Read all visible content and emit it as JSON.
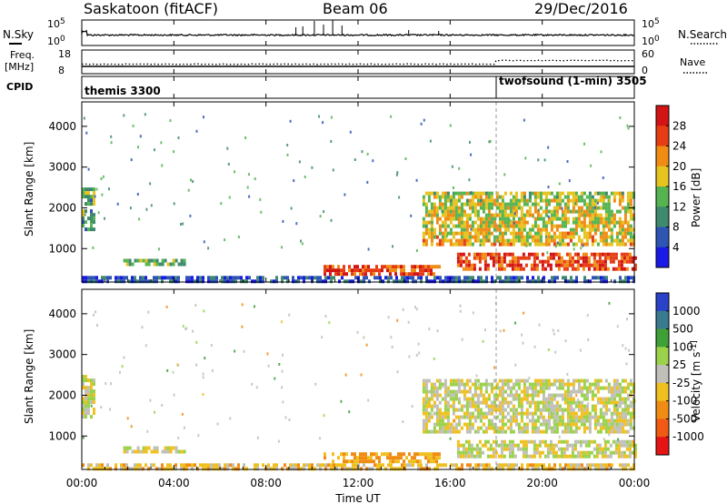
{
  "header": {
    "station": "Saskatoon (fitACF)",
    "beam": "Beam 06",
    "date": "29/Dec/2016"
  },
  "noise_panel": {
    "left_label": "N.Sky",
    "right_label": "N.Search",
    "left_ticks": [
      "10^5",
      "10^0"
    ],
    "right_ticks": [
      "10^5",
      "10^0"
    ]
  },
  "freq_panel": {
    "left_label_1": "Freq.",
    "left_label_2": "[MHz]",
    "right_label": "Nave",
    "left_ticks": [
      "18",
      "8"
    ],
    "right_ticks": [
      "60",
      "0"
    ]
  },
  "cpid_panel": {
    "label": "CPID",
    "mode_1": "themis 3300",
    "mode_2": "twofsound (1-min) 3505",
    "mode_2_start_hour": 18.0
  },
  "chart_data": [
    {
      "type": "heatmap",
      "title": "Power",
      "ylabel": "Slant Range [km]",
      "xlabel": "",
      "x_range_hours": [
        0,
        24
      ],
      "ylim": [
        180,
        4600
      ],
      "yticks": [
        "1000",
        "2000",
        "3000",
        "4000"
      ],
      "colorbar": {
        "label": "Power [dB]",
        "ticks": [
          "4",
          "8",
          "12",
          "16",
          "20",
          "24",
          "28"
        ],
        "colors": [
          "#1a1ae6",
          "#2e55b4",
          "#3d8a6e",
          "#55b450",
          "#e6c31e",
          "#f08c14",
          "#e63c14",
          "#d21414"
        ]
      },
      "echo_regions": [
        {
          "t0": 0.0,
          "t1": 24.0,
          "r0": 180,
          "r1": 330,
          "value_db": 6
        },
        {
          "t0": 0.0,
          "t1": 0.5,
          "r0": 1500,
          "r1": 2500,
          "value_db": 12
        },
        {
          "t0": 1.8,
          "t1": 4.5,
          "r0": 600,
          "r1": 750,
          "value_db": 13
        },
        {
          "t0": 10.5,
          "t1": 15.5,
          "r0": 400,
          "r1": 600,
          "value_db": 26
        },
        {
          "t0": 14.8,
          "t1": 24.0,
          "r0": 1100,
          "r1": 2400,
          "value_db": 16
        },
        {
          "t0": 16.3,
          "t1": 24.0,
          "r0": 500,
          "r1": 900,
          "value_db": 26
        }
      ]
    },
    {
      "type": "heatmap",
      "title": "Velocity",
      "ylabel": "Slant Range [km]",
      "xlabel": "Time UT",
      "x_range_hours": [
        0,
        24
      ],
      "xticks": [
        "00:00",
        "04:00",
        "08:00",
        "12:00",
        "16:00",
        "20:00",
        "00:00"
      ],
      "ylim": [
        180,
        4600
      ],
      "yticks": [
        "1000",
        "2000",
        "3000",
        "4000"
      ],
      "colorbar": {
        "label": "Velocity [m s^-1]",
        "ticks": [
          "1000",
          "500",
          "100",
          "25",
          "-25",
          "-100",
          "-500",
          "-1000"
        ],
        "colors": [
          "#2a42c8",
          "#3a7a8e",
          "#3ea036",
          "#9ad24a",
          "#c0c0b8",
          "#f0c020",
          "#f08c14",
          "#f05a14",
          "#e61414"
        ]
      },
      "echo_regions": [
        {
          "t0": 0.0,
          "t1": 24.0,
          "r0": 180,
          "r1": 330,
          "value_ms": -60
        },
        {
          "t0": 0.0,
          "t1": 0.5,
          "r0": 1500,
          "r1": 2500,
          "value_ms": 0
        },
        {
          "t0": 1.8,
          "t1": 4.5,
          "r0": 600,
          "r1": 750,
          "value_ms": -30
        },
        {
          "t0": 10.5,
          "t1": 15.5,
          "r0": 400,
          "r1": 600,
          "value_ms": -120
        },
        {
          "t0": 14.8,
          "t1": 24.0,
          "r0": 1100,
          "r1": 2400,
          "value_ms": 0
        },
        {
          "t0": 16.3,
          "t1": 24.0,
          "r0": 500,
          "r1": 900,
          "value_ms": 0
        }
      ]
    }
  ]
}
